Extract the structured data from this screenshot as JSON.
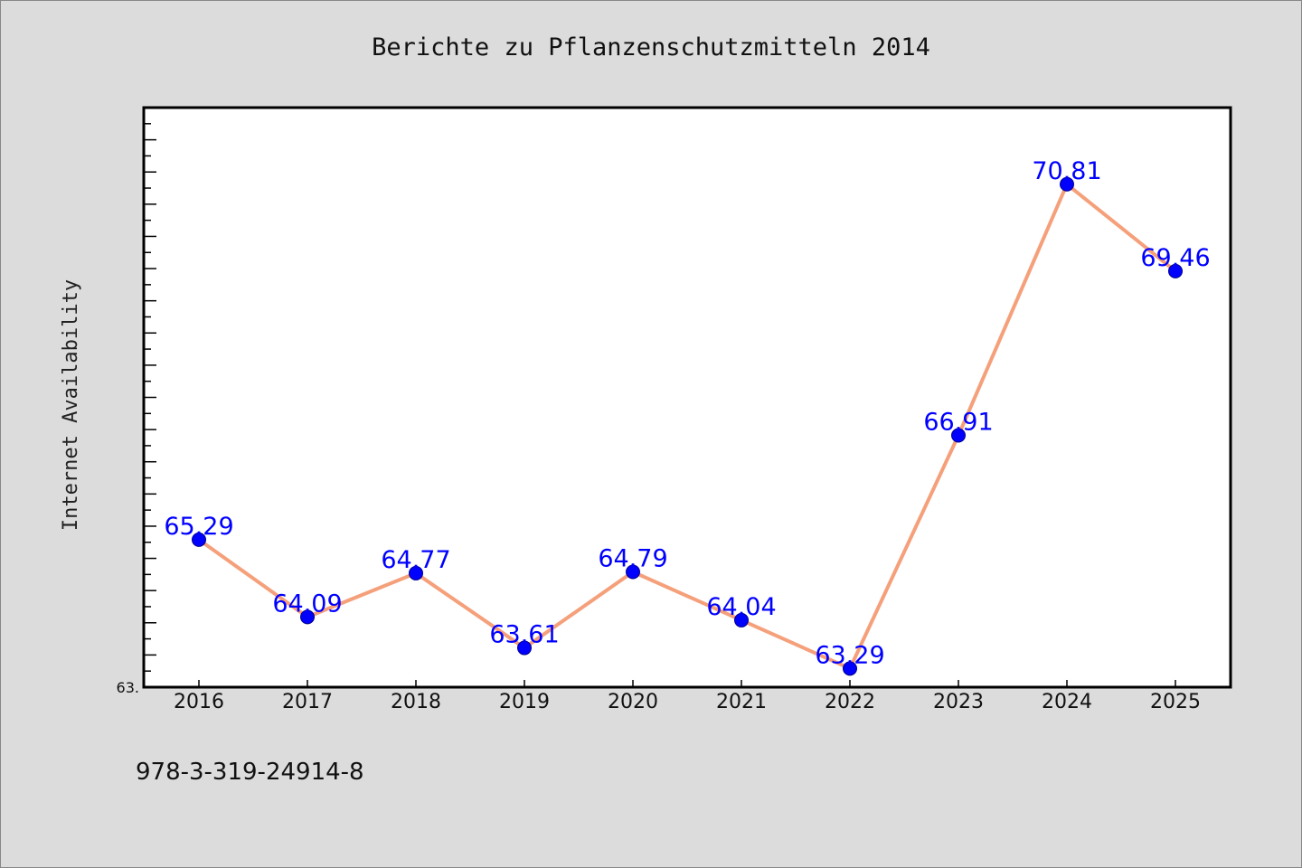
{
  "chart_data": {
    "type": "line",
    "title": "Berichte zu Pflanzenschutzmitteln 2014",
    "xlabel": "",
    "ylabel": "Internet Availability",
    "categories": [
      "2016",
      "2017",
      "2018",
      "2019",
      "2020",
      "2021",
      "2022",
      "2023",
      "2024",
      "2025"
    ],
    "series": [
      {
        "values": [
          65.29,
          64.09,
          64.77,
          63.61,
          64.79,
          64.04,
          63.29,
          66.91,
          70.81,
          69.46
        ]
      }
    ],
    "data_labels": [
      "65.29",
      "64.09",
      "64.77",
      "63.61",
      "64.79",
      "64.04",
      "63.29",
      "66.91",
      "70.81",
      "69.46"
    ],
    "ylim": [
      63.0,
      72.0
    ],
    "y_tick_label": "63.",
    "grid": false,
    "legend": "none",
    "colors": {
      "line": "#f5a07a",
      "marker": "#0000ff",
      "label": "#0000ff",
      "background": "#dcdcdc",
      "plot_area": "#ffffff"
    }
  },
  "footnote": "978-3-319-24914-8"
}
